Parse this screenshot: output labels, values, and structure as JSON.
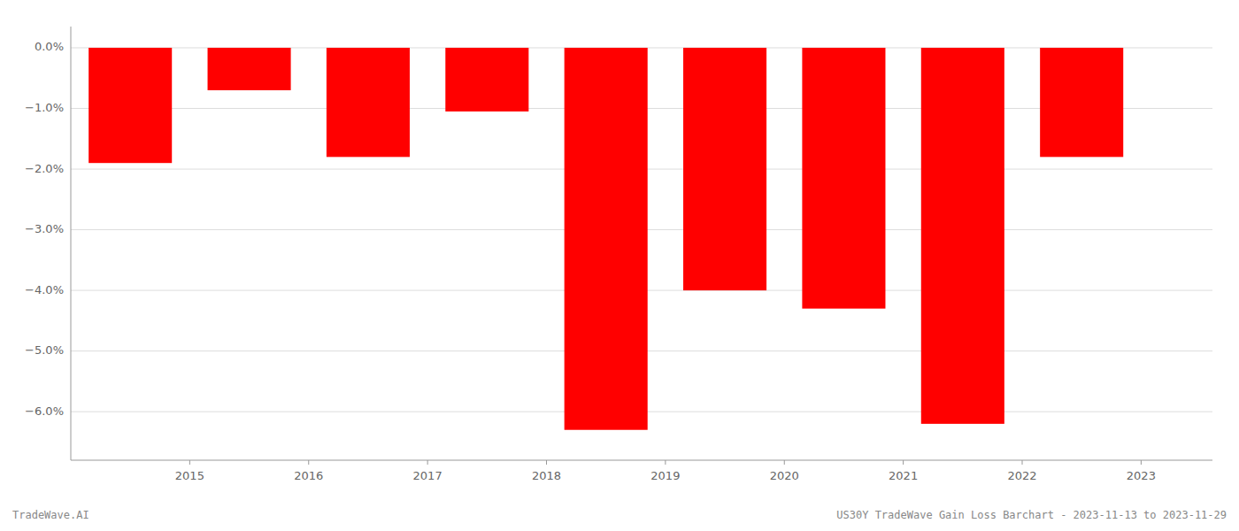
{
  "chart_data": {
    "type": "bar",
    "title": "US30Y TradeWave Gain Loss Barchart - 2023-11-13 to 2023-11-29",
    "annotations": [
      "TradeWave.AI"
    ],
    "x": [
      2014.5,
      2015.5,
      2016.5,
      2017.5,
      2018.5,
      2019.5,
      2020.5,
      2021.5,
      2022.5
    ],
    "values": [
      -1.9,
      -0.7,
      -1.8,
      -1.05,
      -6.3,
      -4.0,
      -4.3,
      -6.2,
      -1.8
    ],
    "color": "#ff0000",
    "xlim": [
      2014.0,
      2023.6
    ],
    "xticks": [
      2015,
      2016,
      2017,
      2018,
      2019,
      2020,
      2021,
      2022,
      2023
    ],
    "ylim": [
      -6.8,
      0.35
    ],
    "yticks": [
      {
        "value": 0.0,
        "label": "0.0%"
      },
      {
        "value": -1.0,
        "label": "−1.0%"
      },
      {
        "value": -2.0,
        "label": "−2.0%"
      },
      {
        "value": -3.0,
        "label": "−3.0%"
      },
      {
        "value": -4.0,
        "label": "−4.0%"
      },
      {
        "value": -5.0,
        "label": "−5.0%"
      },
      {
        "value": -6.0,
        "label": "−6.0%"
      }
    ],
    "grid": true
  }
}
